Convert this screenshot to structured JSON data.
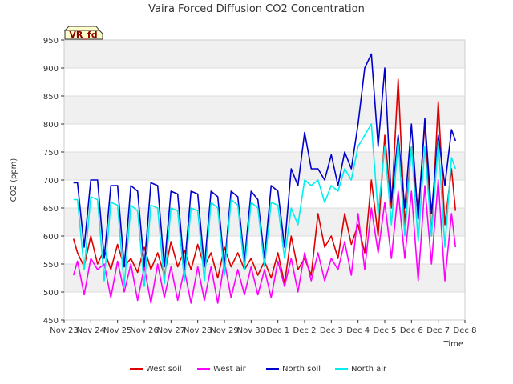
{
  "chart_data": {
    "type": "line",
    "title": "Vaira Forced Diffusion CO2 Concentration",
    "xlabel": "Time",
    "ylabel": "CO2 (ppm)",
    "badge": "VR_fd",
    "ylim": [
      450,
      950
    ],
    "yticks": [
      450,
      500,
      550,
      600,
      650,
      700,
      750,
      800,
      850,
      900,
      950
    ],
    "xlim": [
      0,
      15
    ],
    "xtick_labels": [
      "Nov 23",
      "Nov 24",
      "Nov 25",
      "Nov 26",
      "Nov 27",
      "Nov 28",
      "Nov 29",
      "Nov 30",
      "Dec 1",
      "Dec 2",
      "Dec 3",
      "Dec 4",
      "Dec 5",
      "Dec 6",
      "Dec 7",
      "Dec 8"
    ],
    "legend_position": "bottom",
    "series": [
      {
        "name": "West soil",
        "color": "#dd0000",
        "x": [
          0.35,
          0.5,
          0.75,
          1.0,
          1.25,
          1.5,
          1.75,
          2.0,
          2.25,
          2.5,
          2.75,
          3.0,
          3.25,
          3.5,
          3.75,
          4.0,
          4.25,
          4.5,
          4.75,
          5.0,
          5.25,
          5.5,
          5.75,
          6.0,
          6.25,
          6.5,
          6.75,
          7.0,
          7.25,
          7.5,
          7.75,
          8.0,
          8.25,
          8.5,
          8.75,
          9.0,
          9.25,
          9.5,
          9.75,
          10.0,
          10.25,
          10.5,
          10.75,
          11.0,
          11.25,
          11.5,
          11.75,
          12.0,
          12.25,
          12.5,
          12.75,
          13.0,
          13.25,
          13.5,
          13.75,
          14.0,
          14.25,
          14.5,
          14.65
        ],
        "values": [
          595,
          570,
          545,
          600,
          550,
          575,
          540,
          585,
          545,
          560,
          535,
          580,
          540,
          570,
          530,
          590,
          545,
          575,
          540,
          585,
          545,
          570,
          525,
          580,
          545,
          570,
          540,
          560,
          530,
          555,
          525,
          570,
          515,
          600,
          540,
          560,
          530,
          640,
          580,
          600,
          560,
          640,
          585,
          620,
          570,
          700,
          600,
          780,
          650,
          880,
          620,
          760,
          640,
          800,
          600,
          840,
          620,
          720,
          645
        ]
      },
      {
        "name": "West air",
        "color": "#ff00ff",
        "x": [
          0.35,
          0.5,
          0.75,
          1.0,
          1.25,
          1.5,
          1.75,
          2.0,
          2.25,
          2.5,
          2.75,
          3.0,
          3.25,
          3.5,
          3.75,
          4.0,
          4.25,
          4.5,
          4.75,
          5.0,
          5.25,
          5.5,
          5.75,
          6.0,
          6.25,
          6.5,
          6.75,
          7.0,
          7.25,
          7.5,
          7.75,
          8.0,
          8.25,
          8.5,
          8.75,
          9.0,
          9.25,
          9.5,
          9.75,
          10.0,
          10.25,
          10.5,
          10.75,
          11.0,
          11.25,
          11.5,
          11.75,
          12.0,
          12.25,
          12.5,
          12.75,
          13.0,
          13.25,
          13.5,
          13.75,
          14.0,
          14.25,
          14.5,
          14.65
        ],
        "values": [
          530,
          555,
          495,
          560,
          540,
          550,
          490,
          555,
          500,
          550,
          485,
          545,
          480,
          550,
          490,
          545,
          485,
          540,
          480,
          545,
          485,
          545,
          480,
          555,
          490,
          540,
          495,
          545,
          495,
          540,
          490,
          555,
          510,
          560,
          500,
          570,
          520,
          570,
          520,
          560,
          540,
          590,
          530,
          640,
          540,
          650,
          570,
          660,
          560,
          680,
          560,
          680,
          520,
          690,
          550,
          700,
          520,
          640,
          580
        ]
      },
      {
        "name": "North soil",
        "color": "#0000cc",
        "x": [
          0.35,
          0.5,
          0.75,
          1.0,
          1.25,
          1.5,
          1.75,
          2.0,
          2.25,
          2.5,
          2.75,
          3.0,
          3.25,
          3.5,
          3.75,
          4.0,
          4.25,
          4.5,
          4.75,
          5.0,
          5.25,
          5.5,
          5.75,
          6.0,
          6.25,
          6.5,
          6.75,
          7.0,
          7.25,
          7.5,
          7.75,
          8.0,
          8.25,
          8.5,
          8.75,
          9.0,
          9.25,
          9.5,
          9.75,
          10.0,
          10.25,
          10.5,
          10.75,
          11.0,
          11.25,
          11.5,
          11.75,
          12.0,
          12.25,
          12.5,
          12.75,
          13.0,
          13.25,
          13.5,
          13.75,
          14.0,
          14.25,
          14.5,
          14.65
        ],
        "values": [
          695,
          695,
          580,
          700,
          700,
          560,
          690,
          690,
          545,
          690,
          680,
          545,
          695,
          690,
          545,
          680,
          675,
          540,
          680,
          675,
          545,
          680,
          670,
          545,
          680,
          670,
          555,
          680,
          665,
          560,
          690,
          680,
          580,
          720,
          690,
          785,
          720,
          720,
          700,
          745,
          690,
          750,
          720,
          800,
          900,
          925,
          760,
          900,
          660,
          780,
          650,
          800,
          630,
          810,
          640,
          780,
          690,
          790,
          770
        ]
      },
      {
        "name": "North air",
        "color": "#00eeee",
        "x": [
          0.35,
          0.5,
          0.75,
          1.0,
          1.25,
          1.5,
          1.75,
          2.0,
          2.25,
          2.5,
          2.75,
          3.0,
          3.25,
          3.5,
          3.75,
          4.0,
          4.25,
          4.5,
          4.75,
          5.0,
          5.25,
          5.5,
          5.75,
          6.0,
          6.25,
          6.5,
          6.75,
          7.0,
          7.25,
          7.5,
          7.75,
          8.0,
          8.25,
          8.5,
          8.75,
          9.0,
          9.25,
          9.5,
          9.75,
          10.0,
          10.25,
          10.5,
          10.75,
          11.0,
          11.25,
          11.5,
          11.75,
          12.0,
          12.25,
          12.5,
          12.75,
          13.0,
          13.25,
          13.5,
          13.75,
          14.0,
          14.25,
          14.5,
          14.65
        ],
        "values": [
          665,
          665,
          540,
          670,
          665,
          520,
          660,
          655,
          510,
          655,
          645,
          510,
          655,
          650,
          515,
          650,
          645,
          520,
          650,
          645,
          520,
          660,
          650,
          530,
          665,
          655,
          540,
          660,
          650,
          545,
          660,
          655,
          560,
          650,
          620,
          700,
          690,
          700,
          660,
          690,
          680,
          720,
          700,
          760,
          780,
          800,
          640,
          760,
          620,
          770,
          600,
          760,
          590,
          760,
          600,
          770,
          580,
          740,
          720
        ]
      }
    ]
  }
}
